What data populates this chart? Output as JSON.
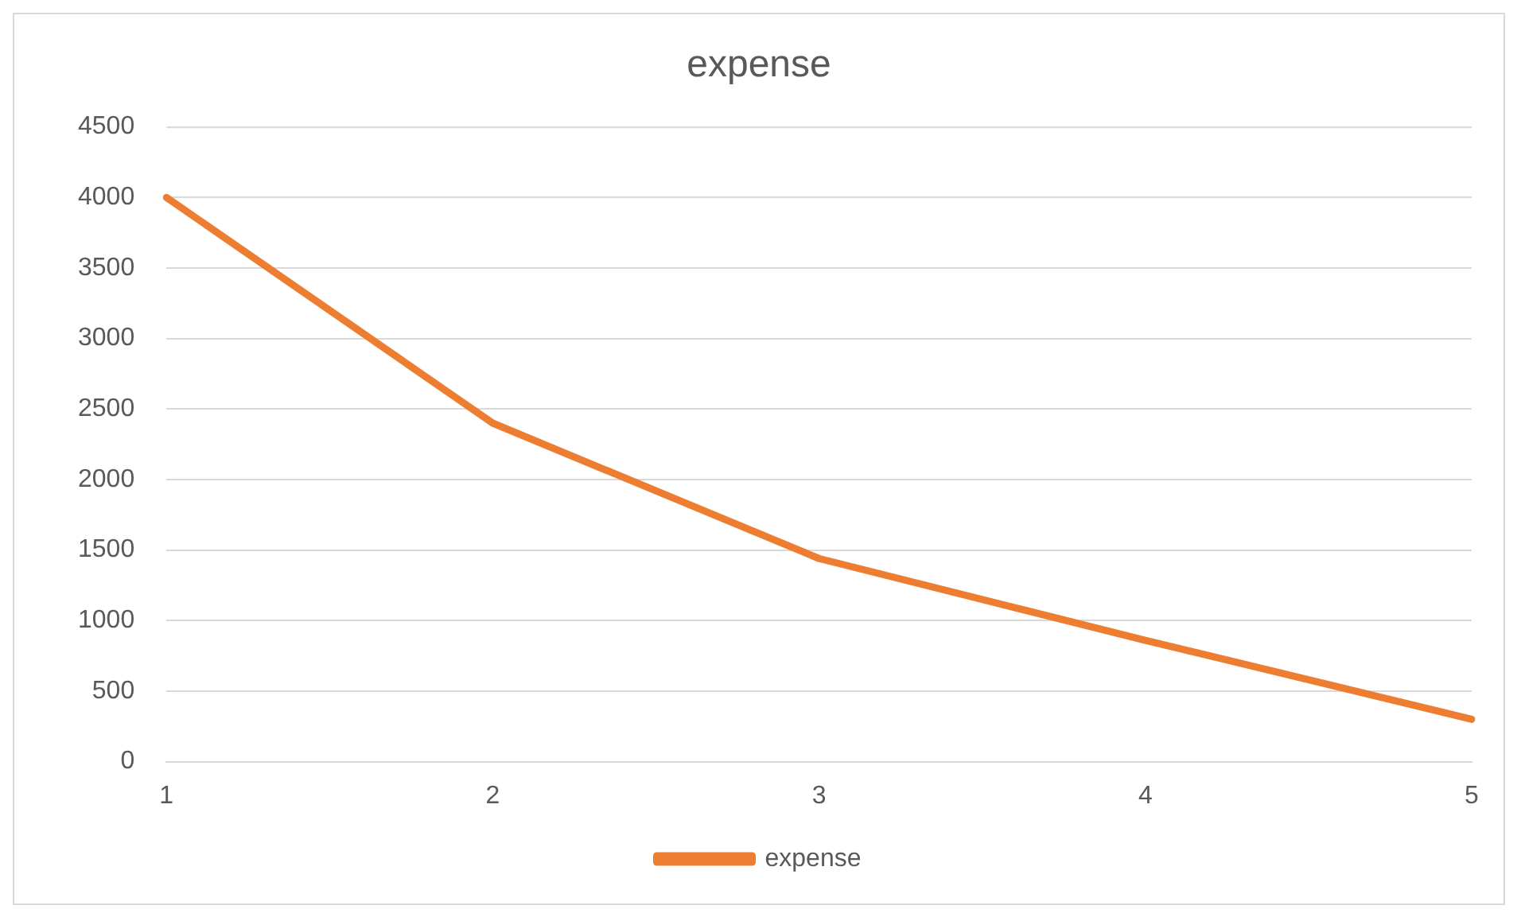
{
  "chart_data": {
    "type": "line",
    "title": "expense",
    "categories": [
      "1",
      "2",
      "3",
      "4",
      "5"
    ],
    "series": [
      {
        "name": "expense",
        "color": "#ed7d31",
        "values": [
          4000,
          2400,
          1440,
          860,
          300
        ]
      }
    ],
    "ylim": [
      0,
      4500
    ],
    "yticks": [
      0,
      500,
      1000,
      1500,
      2000,
      2500,
      3000,
      3500,
      4000,
      4500
    ],
    "grid": "y",
    "legend": "bottom",
    "marker": "none",
    "line_style": "solid"
  }
}
